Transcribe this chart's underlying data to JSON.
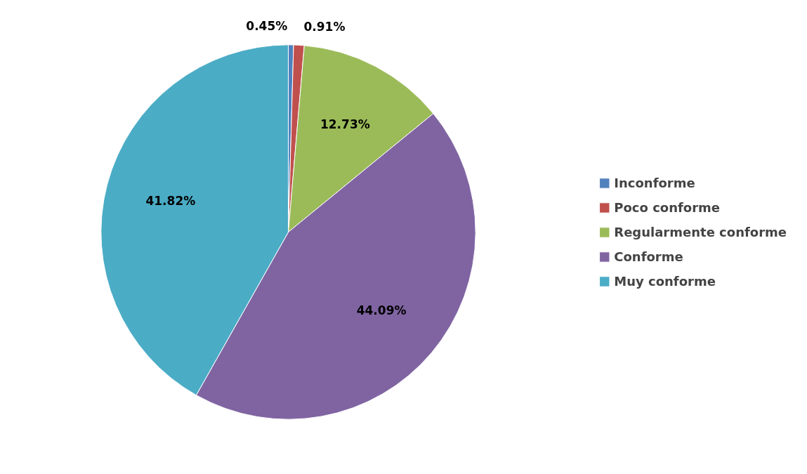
{
  "chart_data": {
    "type": "pie",
    "categories": [
      "Inconforme",
      "Poco conforme",
      "Regularmente conforme",
      "Conforme",
      "Muy conforme"
    ],
    "values": [
      0.45,
      0.91,
      12.73,
      44.09,
      41.82
    ],
    "colors": [
      "#4f81bd",
      "#c0504d",
      "#9bbb59",
      "#8064a2",
      "#4bacc6"
    ],
    "value_labels": [
      "0.45%",
      "0.91%",
      "12.73%",
      "44.09%",
      "41.82%"
    ],
    "legend": "right"
  }
}
